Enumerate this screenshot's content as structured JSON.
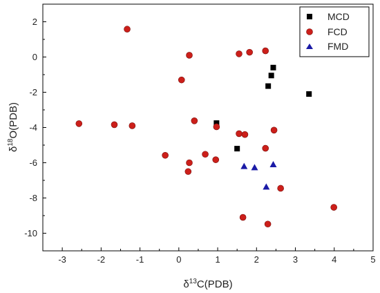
{
  "chart_data": {
    "type": "scatter",
    "title": "",
    "xlabel": {
      "prefix": "δ",
      "sup": "13",
      "rest": "C(PDB)"
    },
    "ylabel": {
      "prefix": "δ",
      "sup": "18",
      "rest": "O(PDB)"
    },
    "xlim": [
      -3.5,
      5
    ],
    "ylim": [
      -11,
      3
    ],
    "xticks": [
      -3,
      -2,
      -1,
      0,
      1,
      2,
      3,
      4,
      5
    ],
    "yticks": [
      2,
      0,
      -2,
      -4,
      -6,
      -8,
      -10
    ],
    "grid": false,
    "legend_position": "top-right",
    "series": [
      {
        "name": "MCD",
        "marker": "square",
        "color": "#000000",
        "points": [
          [
            2.43,
            -0.6
          ],
          [
            2.38,
            -1.05
          ],
          [
            2.3,
            -1.65
          ],
          [
            3.35,
            -2.1
          ],
          [
            0.97,
            -3.75
          ],
          [
            1.5,
            -5.2
          ]
        ]
      },
      {
        "name": "FCD",
        "marker": "circle",
        "color": "#cc1f1a",
        "points": [
          [
            -1.33,
            1.58
          ],
          [
            0.27,
            0.1
          ],
          [
            1.55,
            0.18
          ],
          [
            1.82,
            0.27
          ],
          [
            2.23,
            0.35
          ],
          [
            0.07,
            -1.3
          ],
          [
            -2.57,
            -3.78
          ],
          [
            -1.66,
            -3.84
          ],
          [
            -1.2,
            -3.9
          ],
          [
            0.4,
            -3.62
          ],
          [
            0.97,
            -3.96
          ],
          [
            1.55,
            -4.35
          ],
          [
            1.7,
            -4.4
          ],
          [
            2.45,
            -4.15
          ],
          [
            -0.35,
            -5.58
          ],
          [
            0.68,
            -5.52
          ],
          [
            0.95,
            -5.83
          ],
          [
            0.27,
            -6.0
          ],
          [
            0.24,
            -6.5
          ],
          [
            2.23,
            -5.18
          ],
          [
            2.62,
            -7.45
          ],
          [
            3.99,
            -8.53
          ],
          [
            1.65,
            -9.1
          ],
          [
            2.29,
            -9.48
          ]
        ]
      },
      {
        "name": "FMD",
        "marker": "triangle",
        "color": "#1a1aa6",
        "points": [
          [
            1.68,
            -6.2
          ],
          [
            1.95,
            -6.27
          ],
          [
            2.43,
            -6.1
          ],
          [
            2.25,
            -7.37
          ]
        ]
      }
    ]
  }
}
